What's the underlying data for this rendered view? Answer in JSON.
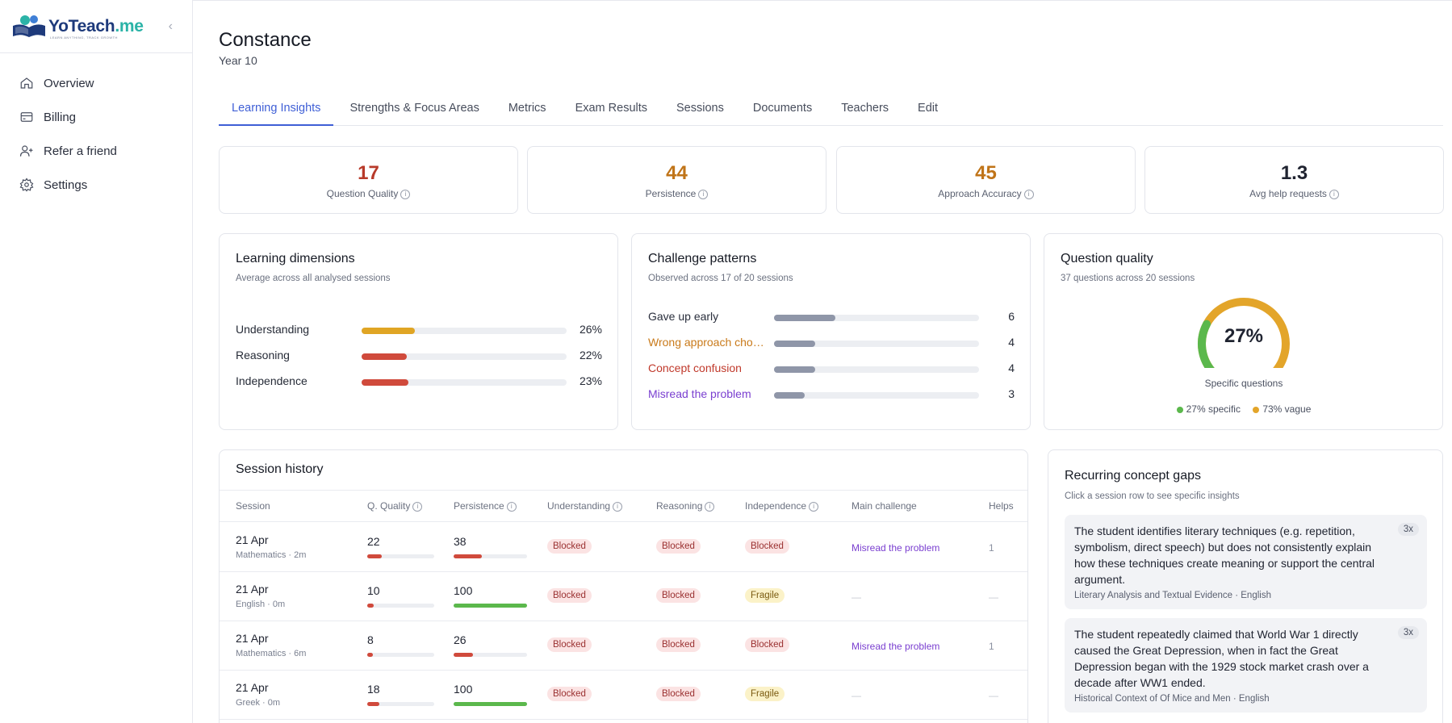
{
  "brand": {
    "name_main": "YoTeach",
    "name_suffix": ".me",
    "tagline": "LEARN ANYTHING, TRACK GROWTH"
  },
  "nav": [
    {
      "label": "Overview",
      "icon": "home-icon"
    },
    {
      "label": "Billing",
      "icon": "card-icon"
    },
    {
      "label": "Refer a friend",
      "icon": "user-plus-icon"
    },
    {
      "label": "Settings",
      "icon": "gear-icon"
    }
  ],
  "student": {
    "name": "Constance",
    "year": "Year 10"
  },
  "tabs": [
    "Learning Insights",
    "Strengths & Focus Areas",
    "Metrics",
    "Exam Results",
    "Sessions",
    "Documents",
    "Teachers",
    "Edit"
  ],
  "active_tab": "Learning Insights",
  "stats": [
    {
      "value": "17",
      "label": "Question Quality",
      "color": "#b83a2a"
    },
    {
      "value": "44",
      "label": "Persistence",
      "color": "#c07418"
    },
    {
      "value": "45",
      "label": "Approach Accuracy",
      "color": "#c07418"
    },
    {
      "value": "1.3",
      "label": "Avg help requests",
      "color": "#1f2330"
    }
  ],
  "learning_dimensions": {
    "title": "Learning dimensions",
    "subtitle": "Average across all analysed sessions",
    "items": [
      {
        "label": "Understanding",
        "value": 26,
        "display": "26%",
        "color": "#e0a524"
      },
      {
        "label": "Reasoning",
        "value": 22,
        "display": "22%",
        "color": "#d04a3c"
      },
      {
        "label": "Independence",
        "value": 23,
        "display": "23%",
        "color": "#d04a3c"
      }
    ]
  },
  "challenge_patterns": {
    "title": "Challenge patterns",
    "subtitle": "Observed across 17 of 20 sessions",
    "max": 20,
    "items": [
      {
        "label": "Gave up early",
        "count": 6,
        "color": "#2a2f3d"
      },
      {
        "label": "Wrong approach chosen",
        "count": 4,
        "color": "#c97a1a"
      },
      {
        "label": "Concept confusion",
        "count": 4,
        "color": "#c0392b"
      },
      {
        "label": "Misread the problem",
        "count": 3,
        "color": "#7a3fd0"
      }
    ]
  },
  "question_quality": {
    "title": "Question quality",
    "subtitle": "37 questions across 20 sessions",
    "center": "27%",
    "specific_fraction": 0.27,
    "gauge_label": "Specific questions",
    "legend": [
      {
        "label": "27% specific",
        "color": "#5bb84c"
      },
      {
        "label": "73% vague",
        "color": "#e3a52a"
      }
    ]
  },
  "session_history": {
    "title": "Session history",
    "columns": [
      "Session",
      "Q. Quality",
      "Persistence",
      "Understanding",
      "Reasoning",
      "Independence",
      "Main challenge",
      "Helps"
    ],
    "rows": [
      {
        "date": "21 Apr",
        "meta": "Mathematics · 2m",
        "q": "22",
        "q_val": 22,
        "p": "38",
        "p_val": 38,
        "u": "Blocked",
        "r": "Blocked",
        "i": "Blocked",
        "challenge": "Misread the problem",
        "helps": "1"
      },
      {
        "date": "21 Apr",
        "meta": "English · 0m",
        "q": "10",
        "q_val": 10,
        "p": "100",
        "p_val": 100,
        "u": "Blocked",
        "r": "Blocked",
        "i": "Fragile",
        "challenge": "—",
        "helps": "—"
      },
      {
        "date": "21 Apr",
        "meta": "Mathematics · 6m",
        "q": "8",
        "q_val": 8,
        "p": "26",
        "p_val": 26,
        "u": "Blocked",
        "r": "Blocked",
        "i": "Blocked",
        "challenge": "Misread the problem",
        "helps": "1"
      },
      {
        "date": "21 Apr",
        "meta": "Greek · 0m",
        "q": "18",
        "q_val": 18,
        "p": "100",
        "p_val": 100,
        "u": "Blocked",
        "r": "Blocked",
        "i": "Fragile",
        "challenge": "—",
        "helps": "—"
      }
    ]
  },
  "concept_gaps": {
    "title": "Recurring concept gaps",
    "subtitle": "Click a session row to see specific insights",
    "items": [
      {
        "text": "The student identifies literary techniques (e.g. repetition, symbolism, direct speech) but does not consistently explain how these techniques create meaning or support the central argument.",
        "source": "Literary Analysis and Textual Evidence · English",
        "count": "3x"
      },
      {
        "text": "The student repeatedly claimed that World War 1 directly caused the Great Depression, when in fact the Great Depression began with the 1929 stock market crash over a decade after WW1 ended.",
        "source": "Historical Context of Of Mice and Men · English",
        "count": "3x"
      }
    ]
  },
  "colors": {
    "accent": "#3f5fd6",
    "low": "#d04a3c",
    "high": "#5bb84c"
  }
}
